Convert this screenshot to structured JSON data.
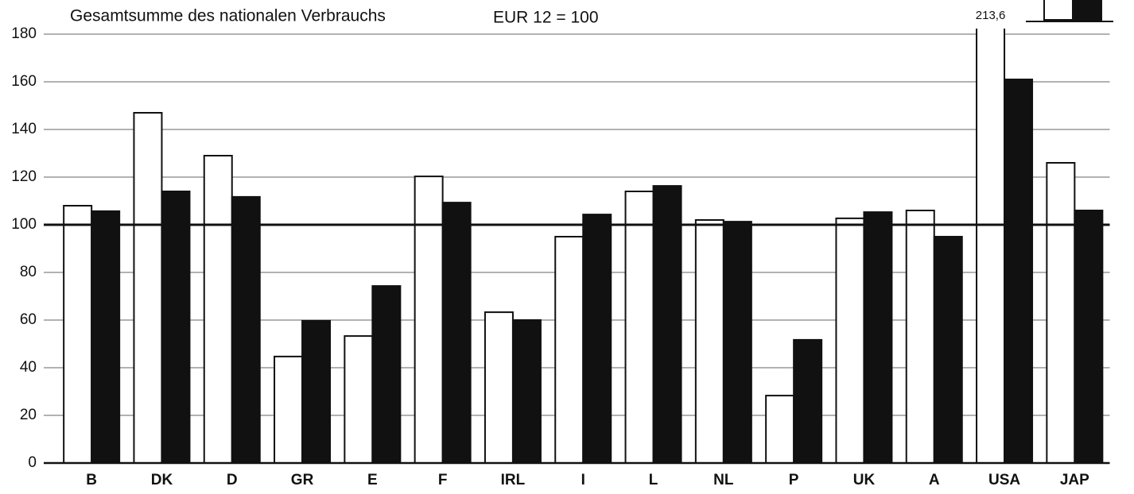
{
  "chart_data": {
    "type": "bar",
    "title": "Gesamtsumme des nationalen Verbrauchs",
    "subtitle": "EUR 12 = 100",
    "categories": [
      "B",
      "DK",
      "D",
      "GR",
      "E",
      "F",
      "IRL",
      "I",
      "L",
      "NL",
      "P",
      "UK",
      "A",
      "USA",
      "JAP"
    ],
    "series": [
      {
        "color": "#ffffff",
        "values": [
          108,
          147,
          129,
          44.7,
          53.3,
          120.3,
          63.3,
          95,
          114,
          102,
          28.3,
          102.7,
          106,
          213.6,
          126
        ],
        "value_labels": [
          null,
          null,
          null,
          null,
          null,
          null,
          null,
          null,
          null,
          null,
          null,
          null,
          null,
          "213,6",
          null
        ]
      },
      {
        "color": "#111111",
        "values": [
          105.7,
          114,
          111.7,
          59.7,
          74.3,
          109.3,
          60,
          104.3,
          116.3,
          101.3,
          51.7,
          105.3,
          95,
          161,
          106
        ]
      }
    ],
    "ylim": [
      0,
      180
    ],
    "yticks": [
      0,
      20,
      40,
      60,
      80,
      100,
      120,
      140,
      160,
      180
    ],
    "reference_line": 100,
    "grid": true
  }
}
